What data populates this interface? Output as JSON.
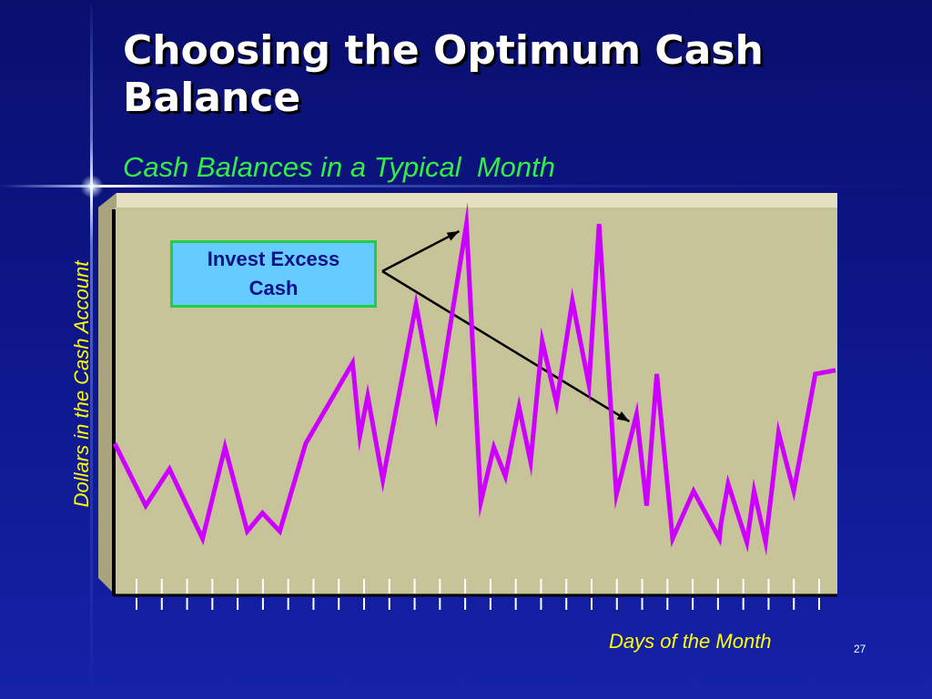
{
  "slide": {
    "title": "Choosing the Optimum Cash Balance",
    "page_number": "27"
  },
  "colors": {
    "background": "#0d1688",
    "plot_face": "#c8c49a",
    "line": "#cc00ff",
    "subtitle": "#33ee44",
    "axis_labels": "#ffff00",
    "callout_fill": "#66ccff",
    "callout_border": "#22cc44"
  },
  "chart_data": {
    "type": "line",
    "title": "Cash Balances in a Typical  Month",
    "xlabel": "Days of the Month",
    "ylabel": "Dollars in the Cash Account",
    "grid": false,
    "x_tick_count": 28,
    "xlim": [
      0,
      100
    ],
    "ylim": [
      0,
      100
    ],
    "x": [
      0,
      4.3,
      7.6,
      12.2,
      15.3,
      18.4,
      20.5,
      22.9,
      26.5,
      33,
      34,
      35.1,
      37.2,
      41.8,
      44.6,
      48.8,
      50.8,
      52.6,
      54.2,
      56.1,
      57.7,
      59.3,
      61.3,
      63.5,
      65.8,
      67.2,
      69.6,
      72.4,
      73.8,
      75.2,
      77.4,
      80.3,
      83.9,
      84.1,
      85.1,
      87.7,
      88.7,
      90.3,
      92.1,
      94.2,
      97.2,
      100
    ],
    "y": [
      38,
      21,
      31,
      12,
      37,
      14,
      19,
      14,
      38,
      60,
      40,
      51,
      28,
      76,
      46,
      98,
      22,
      37,
      29,
      48,
      33,
      66,
      49,
      77,
      54,
      98,
      24,
      46,
      21,
      57,
      12,
      25,
      12,
      16,
      27,
      11,
      25,
      11,
      41,
      25,
      57,
      58
    ],
    "annotations": [
      {
        "text": "Invest Excess\nCash",
        "points_to_x": [
          48.8,
          72.4
        ]
      }
    ]
  }
}
